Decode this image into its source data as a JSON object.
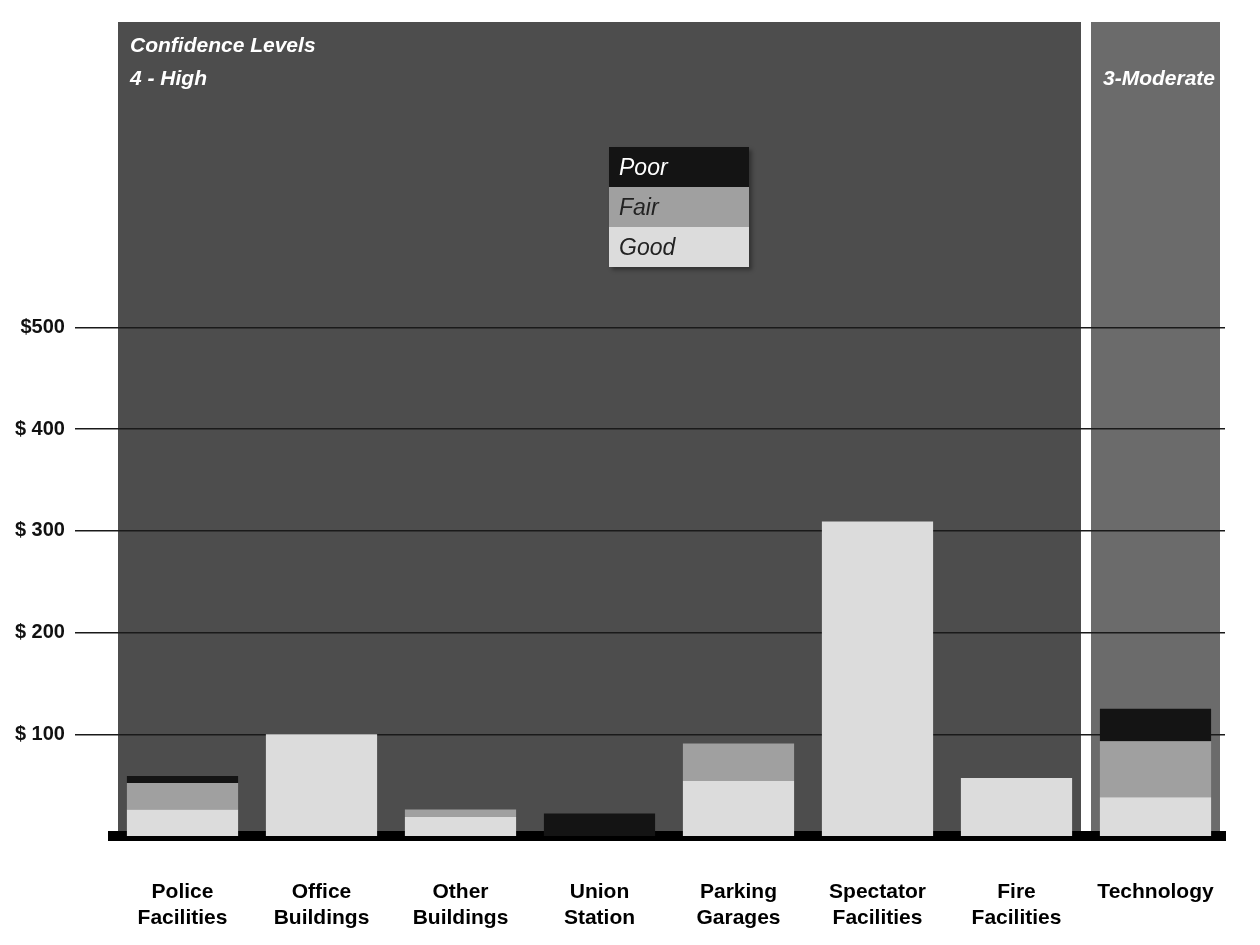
{
  "chart_data": {
    "type": "bar",
    "stacked": true,
    "categories": [
      "Police Facilities",
      "Office Buildings",
      "Other Buildings",
      "Union Station",
      "Parking Garages",
      "Spectator Facilities",
      "Fire Facilities",
      "Technology"
    ],
    "series": [
      {
        "name": "Good",
        "color": "#dcdcdc",
        "values": [
          26,
          100,
          19,
          null,
          54,
          309,
          57,
          38
        ]
      },
      {
        "name": "Fair",
        "color": "#a0a0a0",
        "values": [
          26,
          null,
          7,
          null,
          37,
          null,
          null,
          55
        ]
      },
      {
        "name": "Poor",
        "color": "#141414",
        "values": [
          7,
          null,
          null,
          22,
          null,
          null,
          null,
          32
        ]
      }
    ],
    "ylim": [
      0,
      800
    ],
    "yticks": [
      {
        "value": 100,
        "label": "$ 100"
      },
      {
        "value": 200,
        "label": "$ 200"
      },
      {
        "value": 300,
        "label": "$ 300"
      },
      {
        "value": 400,
        "label": "$ 400"
      },
      {
        "value": 500,
        "label": "$500"
      }
    ],
    "grid": "y",
    "legend": "top",
    "bands": [
      {
        "axis": "x",
        "from": "Police Facilities",
        "to": "Fire Facilities",
        "label": "4 - High",
        "color": "#4d4d4d"
      },
      {
        "axis": "x",
        "from": "Technology",
        "to": "Technology",
        "label": "3-Moderate",
        "color": "#6b6b6b"
      }
    ],
    "annotations": [
      "Confidence Levels"
    ]
  }
}
